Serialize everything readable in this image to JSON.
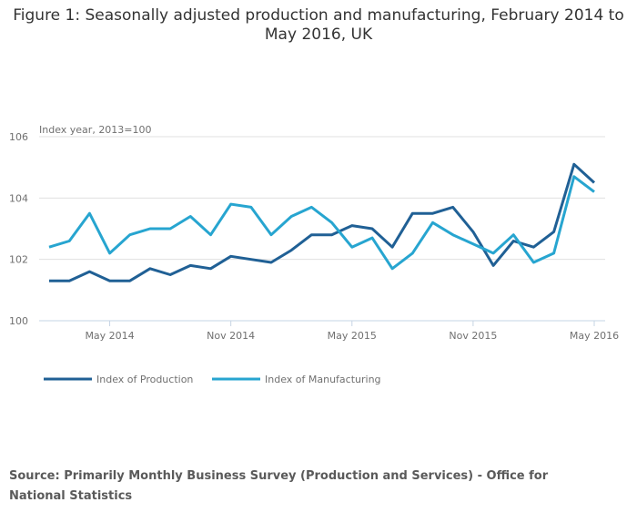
{
  "chart_data": {
    "type": "line",
    "title": "Figure 1: Seasonally adjusted production and manufacturing, February 2014 to May 2016, UK",
    "ylabel": "Index year, 2013=100",
    "xlabel": "",
    "ylim": [
      100,
      106
    ],
    "yticks": [
      100,
      102,
      104,
      106
    ],
    "grid": true,
    "legend_position": "bottom-left",
    "x": [
      "Feb 2014",
      "Mar 2014",
      "Apr 2014",
      "May 2014",
      "Jun 2014",
      "Jul 2014",
      "Aug 2014",
      "Sep 2014",
      "Oct 2014",
      "Nov 2014",
      "Dec 2014",
      "Jan 2015",
      "Feb 2015",
      "Mar 2015",
      "Apr 2015",
      "May 2015",
      "Jun 2015",
      "Jul 2015",
      "Aug 2015",
      "Sep 2015",
      "Oct 2015",
      "Nov 2015",
      "Dec 2015",
      "Jan 2016",
      "Feb 2016",
      "Mar 2016",
      "Apr 2016",
      "May 2016"
    ],
    "xtick_labels": [
      {
        "label": "May 2014",
        "index": 3
      },
      {
        "label": "Nov 2014",
        "index": 9
      },
      {
        "label": "May 2015",
        "index": 15
      },
      {
        "label": "Nov 2015",
        "index": 21
      },
      {
        "label": "May 2016",
        "index": 27
      }
    ],
    "series": [
      {
        "name": "Index of Production",
        "color": "#206095",
        "values": [
          101.3,
          101.3,
          101.6,
          101.3,
          101.3,
          101.7,
          101.5,
          101.8,
          101.7,
          102.1,
          102.0,
          101.9,
          102.3,
          102.8,
          102.8,
          103.1,
          103.0,
          102.4,
          103.5,
          103.5,
          103.7,
          102.9,
          101.8,
          102.6,
          102.4,
          102.9,
          105.1,
          104.5
        ]
      },
      {
        "name": "Index of Manufacturing",
        "color": "#27a5d0",
        "values": [
          102.4,
          102.6,
          103.5,
          102.2,
          102.8,
          103.0,
          103.0,
          103.4,
          102.8,
          103.8,
          103.7,
          102.8,
          103.4,
          103.7,
          103.2,
          102.4,
          102.7,
          101.7,
          102.2,
          103.2,
          102.8,
          102.5,
          102.2,
          102.8,
          101.9,
          102.2,
          104.7,
          104.2
        ]
      }
    ],
    "source": "Source: Primarily Monthly Business Survey (Production and Services) - Office for National Statistics"
  }
}
